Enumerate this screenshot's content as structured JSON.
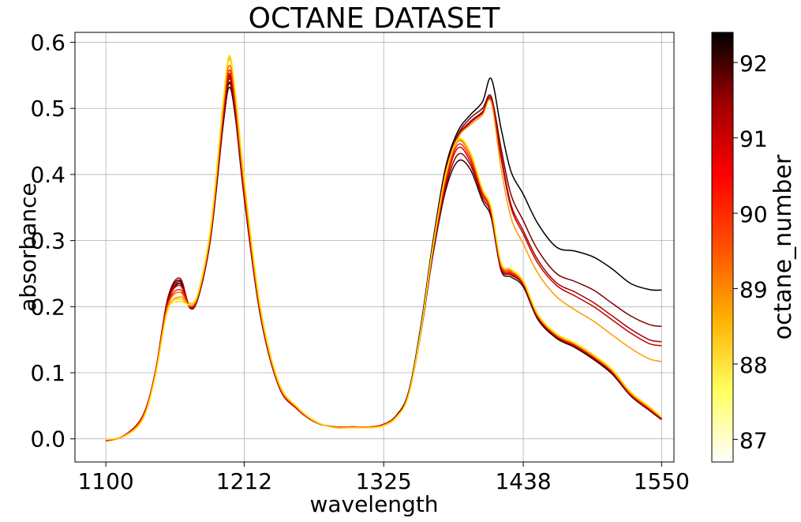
{
  "chart_data": {
    "type": "line",
    "title": "OCTANE DATASET",
    "xlabel": "wavelength",
    "ylabel": "absorbance",
    "xlim": [
      1075,
      1560
    ],
    "ylim": [
      -0.035,
      0.615
    ],
    "xticks": [
      1100,
      1212,
      1325,
      1438,
      1550
    ],
    "xtick_labels": [
      "1100",
      "1212",
      "1325",
      "1438",
      "1550"
    ],
    "yticks": [
      0.0,
      0.1,
      0.2,
      0.3,
      0.4,
      0.5,
      0.6
    ],
    "ytick_labels": [
      "0.0",
      "0.1",
      "0.2",
      "0.3",
      "0.4",
      "0.5",
      "0.6"
    ],
    "grid": true,
    "colorbar": {
      "label": "octane_number",
      "range": [
        86.7,
        92.4
      ],
      "ticks": [
        87,
        88,
        89,
        90,
        91,
        92
      ],
      "tick_labels": [
        "87",
        "88",
        "89",
        "90",
        "91",
        "92"
      ],
      "colormap": [
        "#ffffff",
        "#ffff60",
        "#ffb000",
        "#ff5000",
        "#ff0000",
        "#a00000",
        "#000000"
      ]
    },
    "x": [
      1100,
      1115,
      1130,
      1140,
      1150,
      1160,
      1168,
      1175,
      1185,
      1195,
      1200,
      1205,
      1212,
      1225,
      1240,
      1255,
      1270,
      1285,
      1300,
      1315,
      1325,
      1335,
      1345,
      1355,
      1365,
      1375,
      1385,
      1395,
      1405,
      1412,
      1420,
      1428,
      1438,
      1450,
      1465,
      1480,
      1495,
      1510,
      1525,
      1540,
      1550
    ],
    "series": [
      {
        "octane_number": 92.4,
        "color": "#000000",
        "values": [
          -0.003,
          0.005,
          0.035,
          0.1,
          0.205,
          0.235,
          0.2,
          0.215,
          0.31,
          0.48,
          0.538,
          0.49,
          0.37,
          0.19,
          0.08,
          0.045,
          0.025,
          0.018,
          0.018,
          0.018,
          0.022,
          0.035,
          0.07,
          0.17,
          0.3,
          0.41,
          0.465,
          0.49,
          0.51,
          0.545,
          0.47,
          0.405,
          0.37,
          0.325,
          0.29,
          0.284,
          0.275,
          0.257,
          0.235,
          0.226,
          0.225
        ]
      },
      {
        "octane_number": 91.6,
        "color": "#7a0000",
        "values": [
          -0.003,
          0.005,
          0.035,
          0.1,
          0.205,
          0.238,
          0.2,
          0.218,
          0.31,
          0.485,
          0.545,
          0.495,
          0.372,
          0.19,
          0.08,
          0.045,
          0.025,
          0.018,
          0.018,
          0.018,
          0.022,
          0.034,
          0.068,
          0.166,
          0.295,
          0.405,
          0.46,
          0.485,
          0.5,
          0.518,
          0.44,
          0.37,
          0.33,
          0.285,
          0.25,
          0.238,
          0.225,
          0.205,
          0.186,
          0.173,
          0.17
        ]
      },
      {
        "octane_number": 91.2,
        "color": "#a80000",
        "values": [
          -0.003,
          0.005,
          0.035,
          0.1,
          0.205,
          0.238,
          0.2,
          0.218,
          0.31,
          0.487,
          0.548,
          0.497,
          0.372,
          0.19,
          0.08,
          0.045,
          0.025,
          0.018,
          0.018,
          0.018,
          0.022,
          0.034,
          0.068,
          0.165,
          0.293,
          0.402,
          0.457,
          0.48,
          0.495,
          0.515,
          0.43,
          0.355,
          0.315,
          0.27,
          0.236,
          0.222,
          0.206,
          0.186,
          0.166,
          0.15,
          0.147
        ]
      },
      {
        "octane_number": 90.9,
        "color": "#c00000",
        "values": [
          -0.003,
          0.005,
          0.035,
          0.1,
          0.205,
          0.238,
          0.2,
          0.218,
          0.31,
          0.488,
          0.55,
          0.498,
          0.373,
          0.19,
          0.08,
          0.045,
          0.025,
          0.018,
          0.018,
          0.018,
          0.022,
          0.034,
          0.068,
          0.165,
          0.292,
          0.4,
          0.455,
          0.478,
          0.493,
          0.512,
          0.425,
          0.35,
          0.31,
          0.265,
          0.232,
          0.216,
          0.2,
          0.18,
          0.16,
          0.144,
          0.141
        ]
      },
      {
        "octane_number": 88.6,
        "color": "#ff9a00",
        "values": [
          -0.001,
          0.004,
          0.03,
          0.095,
          0.195,
          0.215,
          0.205,
          0.222,
          0.32,
          0.51,
          0.575,
          0.52,
          0.39,
          0.2,
          0.085,
          0.048,
          0.026,
          0.017,
          0.017,
          0.017,
          0.02,
          0.032,
          0.065,
          0.16,
          0.29,
          0.4,
          0.455,
          0.475,
          0.49,
          0.51,
          0.41,
          0.335,
          0.295,
          0.25,
          0.215,
          0.195,
          0.178,
          0.157,
          0.137,
          0.121,
          0.117
        ]
      },
      {
        "octane_number": 92.0,
        "color": "#300000",
        "values": [
          -0.003,
          0.005,
          0.035,
          0.1,
          0.21,
          0.24,
          0.198,
          0.215,
          0.305,
          0.475,
          0.532,
          0.485,
          0.365,
          0.188,
          0.08,
          0.045,
          0.025,
          0.018,
          0.018,
          0.018,
          0.022,
          0.034,
          0.066,
          0.16,
          0.28,
          0.375,
          0.42,
          0.408,
          0.36,
          0.335,
          0.255,
          0.245,
          0.23,
          0.18,
          0.152,
          0.138,
          0.12,
          0.098,
          0.065,
          0.043,
          0.029
        ]
      },
      {
        "octane_number": 91.4,
        "color": "#900000",
        "values": [
          -0.003,
          0.005,
          0.035,
          0.1,
          0.212,
          0.243,
          0.199,
          0.216,
          0.308,
          0.48,
          0.54,
          0.49,
          0.368,
          0.19,
          0.08,
          0.045,
          0.025,
          0.018,
          0.018,
          0.018,
          0.022,
          0.034,
          0.066,
          0.161,
          0.283,
          0.38,
          0.43,
          0.415,
          0.365,
          0.34,
          0.258,
          0.248,
          0.233,
          0.182,
          0.154,
          0.14,
          0.122,
          0.1,
          0.066,
          0.044,
          0.03
        ]
      },
      {
        "octane_number": 90.6,
        "color": "#d80000",
        "values": [
          -0.003,
          0.005,
          0.035,
          0.1,
          0.205,
          0.232,
          0.2,
          0.218,
          0.312,
          0.49,
          0.553,
          0.5,
          0.375,
          0.192,
          0.081,
          0.046,
          0.025,
          0.018,
          0.018,
          0.018,
          0.022,
          0.034,
          0.066,
          0.162,
          0.286,
          0.385,
          0.44,
          0.42,
          0.37,
          0.343,
          0.26,
          0.25,
          0.235,
          0.184,
          0.155,
          0.141,
          0.123,
          0.101,
          0.067,
          0.045,
          0.031
        ]
      },
      {
        "octane_number": 90.0,
        "color": "#ff2000",
        "values": [
          -0.002,
          0.005,
          0.033,
          0.098,
          0.202,
          0.226,
          0.2,
          0.219,
          0.314,
          0.495,
          0.558,
          0.505,
          0.378,
          0.194,
          0.082,
          0.046,
          0.025,
          0.018,
          0.018,
          0.018,
          0.021,
          0.033,
          0.066,
          0.162,
          0.288,
          0.39,
          0.445,
          0.425,
          0.373,
          0.345,
          0.262,
          0.252,
          0.236,
          0.185,
          0.156,
          0.142,
          0.124,
          0.102,
          0.068,
          0.046,
          0.032
        ]
      },
      {
        "octane_number": 89.3,
        "color": "#ff6000",
        "values": [
          -0.002,
          0.004,
          0.032,
          0.097,
          0.2,
          0.222,
          0.201,
          0.22,
          0.316,
          0.5,
          0.565,
          0.51,
          0.382,
          0.196,
          0.083,
          0.047,
          0.026,
          0.017,
          0.017,
          0.017,
          0.021,
          0.033,
          0.066,
          0.163,
          0.29,
          0.395,
          0.45,
          0.43,
          0.375,
          0.347,
          0.264,
          0.254,
          0.237,
          0.186,
          0.157,
          0.143,
          0.125,
          0.103,
          0.069,
          0.047,
          0.032
        ]
      },
      {
        "octane_number": 88.3,
        "color": "#ffc000",
        "values": [
          -0.001,
          0.004,
          0.03,
          0.095,
          0.196,
          0.212,
          0.203,
          0.222,
          0.32,
          0.508,
          0.578,
          0.52,
          0.392,
          0.2,
          0.085,
          0.048,
          0.026,
          0.017,
          0.017,
          0.017,
          0.02,
          0.032,
          0.065,
          0.163,
          0.292,
          0.398,
          0.452,
          0.433,
          0.377,
          0.349,
          0.266,
          0.256,
          0.238,
          0.187,
          0.158,
          0.144,
          0.126,
          0.104,
          0.07,
          0.048,
          0.033
        ]
      },
      {
        "octane_number": 87.9,
        "color": "#ffe000",
        "values": [
          -0.001,
          0.004,
          0.03,
          0.094,
          0.194,
          0.208,
          0.204,
          0.223,
          0.322,
          0.51,
          0.58,
          0.522,
          0.395,
          0.202,
          0.086,
          0.048,
          0.026,
          0.017,
          0.017,
          0.017,
          0.02,
          0.032,
          0.065,
          0.163,
          0.292,
          0.398,
          0.453,
          0.434,
          0.378,
          0.35,
          0.267,
          0.257,
          0.239,
          0.188,
          0.159,
          0.145,
          0.127,
          0.105,
          0.071,
          0.049,
          0.033
        ]
      }
    ]
  }
}
